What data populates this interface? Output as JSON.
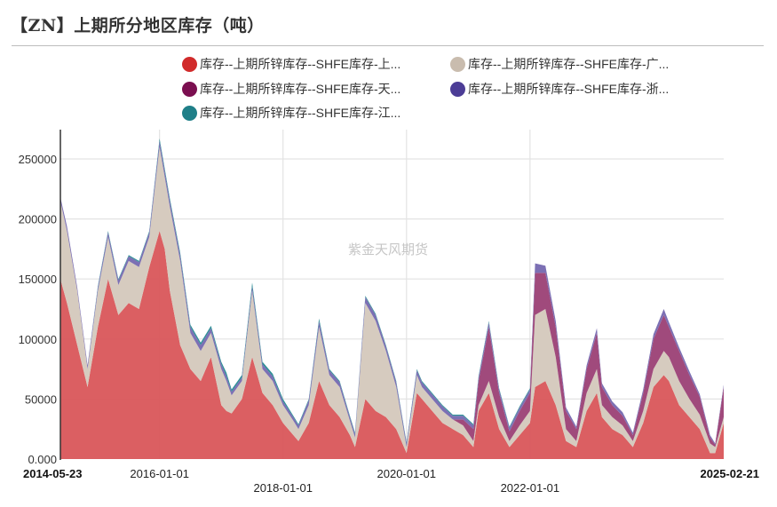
{
  "header": {
    "title": "【ZN】上期所分地区库存（吨）"
  },
  "legend": {
    "items": [
      {
        "label": "库存--上期所锌库存--SHFE库存-上...",
        "color": "#d12b2b",
        "series": "shanghai"
      },
      {
        "label": "库存--上期所锌库存--SHFE库存-广...",
        "color": "#c9bcae",
        "series": "guangdong"
      },
      {
        "label": "库存--上期所锌库存--SHFE库存-天...",
        "color": "#7b0f50",
        "series": "tianjin"
      },
      {
        "label": "库存--上期所锌库存--SHFE库存-浙...",
        "color": "#4c3d96",
        "series": "zhejiang"
      },
      {
        "label": "库存--上期所锌库存--SHFE库存-江...",
        "color": "#1f7f88",
        "series": "jiangsu"
      }
    ]
  },
  "watermark": "紫金天风期货",
  "chart_data": {
    "type": "area",
    "stacked": true,
    "title": "【ZN】上期所分地区库存（吨）",
    "xlabel": "",
    "ylabel": "",
    "ylim": [
      0,
      275000
    ],
    "y_ticks": [
      {
        "value": 0,
        "label": "0.000"
      },
      {
        "value": 50000,
        "label": "50000"
      },
      {
        "value": 100000,
        "label": "100000"
      },
      {
        "value": 150000,
        "label": "150000"
      },
      {
        "value": 200000,
        "label": "200000"
      },
      {
        "value": 250000,
        "label": "250000"
      }
    ],
    "x_ticks": [
      {
        "date": "2014-05-23",
        "label": "2014-05-23",
        "bold": true,
        "row": 0
      },
      {
        "date": "2016-01-01",
        "label": "2016-01-01",
        "bold": false,
        "row": 0
      },
      {
        "date": "2018-01-01",
        "label": "2018-01-01",
        "bold": false,
        "row": 1
      },
      {
        "date": "2020-01-01",
        "label": "2020-01-01",
        "bold": false,
        "row": 0
      },
      {
        "date": "2022-01-01",
        "label": "2022-01-01",
        "bold": false,
        "row": 1
      },
      {
        "date": "2025-02-21",
        "label": "2025-02-21",
        "bold": true,
        "row": 0
      }
    ],
    "x_range": [
      "2014-05-23",
      "2025-02-21"
    ],
    "grid": true,
    "legend_position": "top",
    "x": [
      "2014-05",
      "2014-07",
      "2014-09",
      "2014-11",
      "2015-01",
      "2015-03",
      "2015-05",
      "2015-07",
      "2015-09",
      "2015-11",
      "2016-01",
      "2016-02",
      "2016-03",
      "2016-05",
      "2016-07",
      "2016-09",
      "2016-11",
      "2017-01",
      "2017-02",
      "2017-03",
      "2017-05",
      "2017-07",
      "2017-09",
      "2017-11",
      "2018-01",
      "2018-03",
      "2018-04",
      "2018-06",
      "2018-08",
      "2018-10",
      "2018-12",
      "2019-02",
      "2019-03",
      "2019-05",
      "2019-07",
      "2019-09",
      "2019-11",
      "2020-01",
      "2020-03",
      "2020-04",
      "2020-06",
      "2020-08",
      "2020-10",
      "2020-12",
      "2021-02",
      "2021-03",
      "2021-05",
      "2021-07",
      "2021-09",
      "2021-11",
      "2022-01",
      "2022-02",
      "2022-04",
      "2022-06",
      "2022-08",
      "2022-10",
      "2022-12",
      "2023-02",
      "2023-03",
      "2023-05",
      "2023-07",
      "2023-09",
      "2023-11",
      "2024-01",
      "2024-03",
      "2024-04",
      "2024-06",
      "2024-08",
      "2024-10",
      "2024-12",
      "2025-01",
      "2025-02"
    ],
    "series": [
      {
        "name": "库存--上期所锌库存--SHFE库存-上海",
        "color": "#d9565a",
        "values": [
          150000,
          130000,
          95000,
          60000,
          110000,
          150000,
          120000,
          130000,
          125000,
          160000,
          190000,
          175000,
          140000,
          95000,
          75000,
          65000,
          85000,
          45000,
          40000,
          38000,
          50000,
          85000,
          55000,
          45000,
          30000,
          20000,
          15000,
          30000,
          65000,
          45000,
          35000,
          20000,
          10000,
          50000,
          40000,
          35000,
          25000,
          5000,
          55000,
          50000,
          40000,
          30000,
          25000,
          20000,
          10000,
          40000,
          55000,
          25000,
          10000,
          20000,
          30000,
          60000,
          65000,
          45000,
          15000,
          10000,
          40000,
          55000,
          35000,
          25000,
          20000,
          10000,
          30000,
          60000,
          70000,
          65000,
          45000,
          35000,
          25000,
          5000,
          5000,
          30000
        ]
      },
      {
        "name": "库存--上期所锌库存--SHFE库存-广东",
        "color": "#d6cbbf",
        "values": [
          65000,
          60000,
          45000,
          15000,
          30000,
          35000,
          25000,
          35000,
          35000,
          25000,
          70000,
          60000,
          70000,
          70000,
          30000,
          25000,
          20000,
          30000,
          25000,
          15000,
          15000,
          55000,
          20000,
          20000,
          15000,
          12000,
          10000,
          15000,
          45000,
          25000,
          25000,
          12000,
          8000,
          80000,
          75000,
          55000,
          35000,
          5000,
          15000,
          10000,
          10000,
          10000,
          8000,
          8000,
          5000,
          5000,
          10000,
          10000,
          5000,
          8000,
          10000,
          60000,
          60000,
          40000,
          10000,
          5000,
          15000,
          20000,
          10000,
          10000,
          8000,
          5000,
          10000,
          15000,
          20000,
          20000,
          20000,
          15000,
          12000,
          8000,
          5000,
          5000
        ]
      },
      {
        "name": "库存--上期所锌库存--SHFE库存-天津",
        "color": "#a04a7c",
        "values": [
          0,
          0,
          0,
          0,
          0,
          0,
          0,
          0,
          0,
          0,
          0,
          0,
          0,
          0,
          0,
          0,
          0,
          0,
          0,
          0,
          0,
          0,
          0,
          0,
          0,
          0,
          0,
          0,
          0,
          0,
          0,
          0,
          0,
          0,
          0,
          0,
          0,
          0,
          0,
          0,
          0,
          0,
          0,
          5000,
          10000,
          20000,
          45000,
          20000,
          8000,
          12000,
          15000,
          35000,
          30000,
          25000,
          15000,
          10000,
          20000,
          30000,
          15000,
          10000,
          8000,
          5000,
          15000,
          25000,
          30000,
          25000,
          25000,
          20000,
          15000,
          5000,
          2000,
          25000
        ]
      },
      {
        "name": "库存--上期所锌库存--SHFE库存-浙江",
        "color": "#7c70b4",
        "values": [
          3000,
          4000,
          3000,
          3000,
          3000,
          4000,
          4000,
          4000,
          4000,
          4000,
          5000,
          5000,
          5000,
          5000,
          5000,
          5000,
          4000,
          4000,
          4000,
          3000,
          3000,
          4000,
          4000,
          4000,
          3000,
          3000,
          3000,
          4000,
          5000,
          4000,
          4000,
          3000,
          3000,
          5000,
          5000,
          4000,
          4000,
          3000,
          4000,
          4000,
          4000,
          4000,
          3000,
          3000,
          3000,
          3000,
          4000,
          3000,
          3000,
          3000,
          3000,
          8000,
          6000,
          5000,
          3000,
          2000,
          3000,
          4000,
          3000,
          3000,
          3000,
          2000,
          3000,
          4000,
          5000,
          4000,
          3000,
          3000,
          2000,
          2000,
          1000,
          2000
        ]
      },
      {
        "name": "库存--上期所锌库存--SHFE库存-江苏",
        "color": "#2e8e96",
        "values": [
          0,
          0,
          0,
          0,
          1000,
          1000,
          1000,
          1000,
          1000,
          1000,
          2000,
          2000,
          2000,
          2000,
          2000,
          2000,
          2000,
          2000,
          3000,
          2000,
          2000,
          3000,
          2000,
          2000,
          2000,
          1000,
          1000,
          1000,
          2000,
          1000,
          1000,
          1000,
          1000,
          1000,
          1000,
          1000,
          1000,
          1000,
          1000,
          1000,
          1000,
          1000,
          1000,
          1000,
          1000,
          1000,
          1000,
          1000,
          1000,
          1000,
          1000,
          0,
          0,
          0,
          0,
          0,
          0,
          0,
          0,
          0,
          0,
          0,
          0,
          0,
          0,
          0,
          0,
          0,
          0,
          0,
          0,
          0
        ]
      }
    ]
  }
}
